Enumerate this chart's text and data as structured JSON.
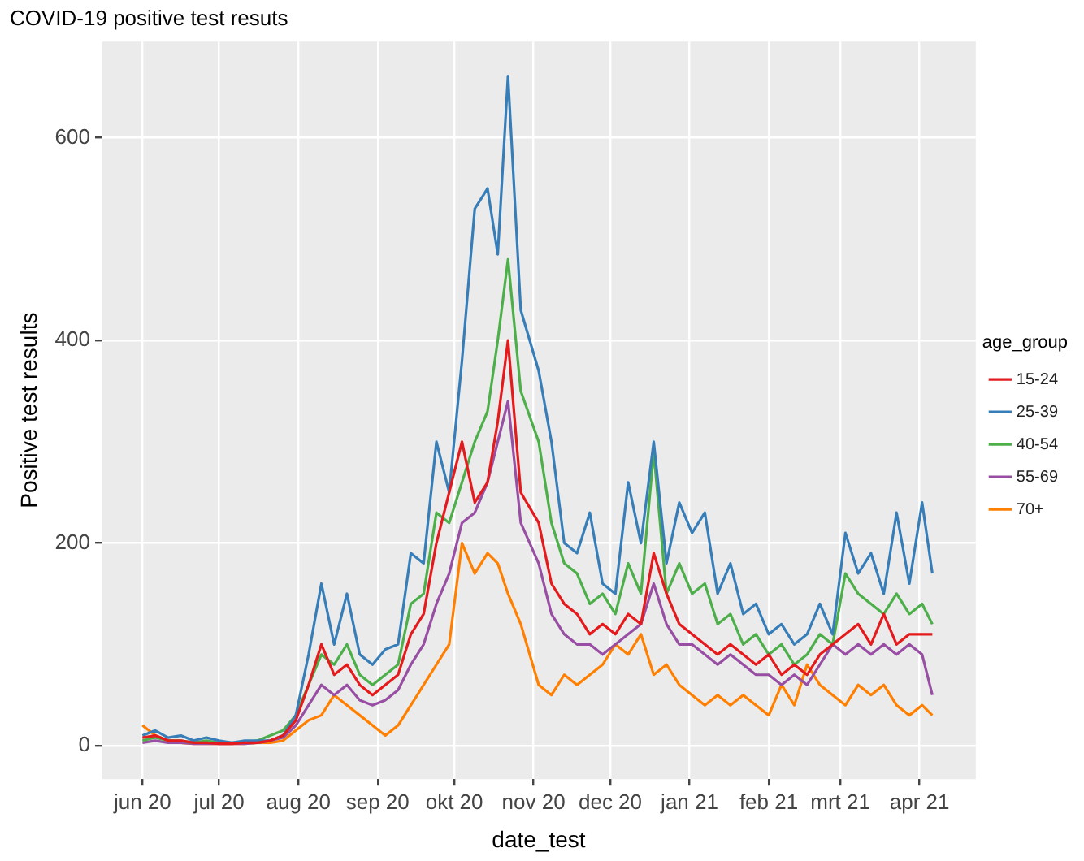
{
  "chart_data": {
    "type": "line",
    "title": "COVID-19 positive test resuts",
    "xlabel": "date_test",
    "ylabel": "Positive test results",
    "legend_title": "age_group",
    "legend": "right",
    "grid": true,
    "marker": "none",
    "line_style": "solid",
    "x": [
      "2020-06-01",
      "2020-06-06",
      "2020-06-11",
      "2020-06-16",
      "2020-06-21",
      "2020-06-26",
      "2020-07-01",
      "2020-07-06",
      "2020-07-11",
      "2020-07-16",
      "2020-07-21",
      "2020-07-26",
      "2020-07-31",
      "2020-08-05",
      "2020-08-10",
      "2020-08-15",
      "2020-08-20",
      "2020-08-25",
      "2020-08-30",
      "2020-09-04",
      "2020-09-09",
      "2020-09-14",
      "2020-09-19",
      "2020-09-24",
      "2020-09-29",
      "2020-10-04",
      "2020-10-09",
      "2020-10-14",
      "2020-10-18",
      "2020-10-22",
      "2020-10-27",
      "2020-11-03",
      "2020-11-08",
      "2020-11-13",
      "2020-11-18",
      "2020-11-23",
      "2020-11-28",
      "2020-12-03",
      "2020-12-08",
      "2020-12-13",
      "2020-12-18",
      "2020-12-23",
      "2020-12-28",
      "2021-01-02",
      "2021-01-07",
      "2021-01-12",
      "2021-01-17",
      "2021-01-22",
      "2021-01-27",
      "2021-02-01",
      "2021-02-06",
      "2021-02-11",
      "2021-02-16",
      "2021-02-21",
      "2021-02-26",
      "2021-03-03",
      "2021-03-08",
      "2021-03-13",
      "2021-03-18",
      "2021-03-23",
      "2021-03-28",
      "2021-04-02",
      "2021-04-06"
    ],
    "xlim": [
      "2020-05-16",
      "2021-04-23"
    ],
    "xticks": [
      {
        "value": "2020-06-01",
        "label": "jun 20"
      },
      {
        "value": "2020-07-01",
        "label": "jul 20"
      },
      {
        "value": "2020-08-01",
        "label": "aug 20"
      },
      {
        "value": "2020-09-01",
        "label": "sep 20"
      },
      {
        "value": "2020-10-01",
        "label": "okt 20"
      },
      {
        "value": "2020-11-01",
        "label": "nov 20"
      },
      {
        "value": "2020-12-01",
        "label": "dec 20"
      },
      {
        "value": "2021-01-01",
        "label": "jan 21"
      },
      {
        "value": "2021-02-01",
        "label": "feb 21"
      },
      {
        "value": "2021-03-01",
        "label": "mrt 21"
      },
      {
        "value": "2021-04-01",
        "label": "apr 21"
      }
    ],
    "ylim": [
      -33,
      695
    ],
    "yticks": [
      0,
      200,
      400,
      600
    ],
    "series": [
      {
        "name": "15-24",
        "color": "#e41a1c",
        "values": [
          8,
          10,
          5,
          5,
          3,
          3,
          2,
          2,
          3,
          3,
          5,
          10,
          25,
          60,
          100,
          70,
          80,
          60,
          50,
          60,
          70,
          110,
          130,
          200,
          250,
          300,
          240,
          260,
          320,
          400,
          250,
          220,
          160,
          140,
          130,
          110,
          120,
          110,
          130,
          120,
          190,
          150,
          120,
          110,
          100,
          90,
          100,
          90,
          80,
          90,
          70,
          80,
          70,
          90,
          100,
          110,
          120,
          100,
          130,
          100,
          110,
          110,
          110
        ]
      },
      {
        "name": "25-39",
        "color": "#377eb8",
        "values": [
          10,
          15,
          8,
          10,
          5,
          8,
          5,
          3,
          5,
          5,
          5,
          10,
          30,
          90,
          160,
          100,
          150,
          90,
          80,
          95,
          100,
          190,
          180,
          300,
          250,
          380,
          530,
          550,
          485,
          661,
          430,
          370,
          300,
          200,
          190,
          230,
          160,
          150,
          260,
          200,
          300,
          180,
          240,
          210,
          230,
          150,
          180,
          130,
          140,
          110,
          120,
          100,
          110,
          140,
          110,
          210,
          170,
          190,
          150,
          230,
          160,
          240,
          170
        ]
      },
      {
        "name": "40-54",
        "color": "#4daf4a",
        "values": [
          5,
          8,
          5,
          5,
          3,
          5,
          3,
          3,
          3,
          5,
          10,
          15,
          30,
          60,
          90,
          80,
          100,
          70,
          60,
          70,
          80,
          140,
          150,
          230,
          220,
          260,
          300,
          330,
          400,
          480,
          350,
          300,
          220,
          180,
          170,
          140,
          150,
          130,
          180,
          150,
          290,
          150,
          180,
          150,
          160,
          120,
          130,
          100,
          110,
          90,
          100,
          80,
          90,
          110,
          100,
          170,
          150,
          140,
          130,
          150,
          130,
          140,
          120
        ]
      },
      {
        "name": "55-69",
        "color": "#984ea3",
        "values": [
          3,
          5,
          3,
          3,
          2,
          2,
          2,
          2,
          2,
          3,
          5,
          8,
          20,
          40,
          60,
          50,
          60,
          45,
          40,
          45,
          55,
          80,
          100,
          140,
          170,
          220,
          230,
          260,
          300,
          340,
          220,
          180,
          130,
          110,
          100,
          100,
          90,
          100,
          110,
          120,
          160,
          120,
          100,
          100,
          90,
          80,
          90,
          80,
          70,
          70,
          60,
          70,
          60,
          80,
          100,
          90,
          100,
          90,
          100,
          90,
          100,
          90,
          50
        ]
      },
      {
        "name": "70+",
        "color": "#ff7f00",
        "values": [
          20,
          10,
          5,
          3,
          2,
          2,
          2,
          2,
          2,
          3,
          3,
          5,
          15,
          25,
          30,
          50,
          40,
          30,
          20,
          10,
          20,
          40,
          60,
          80,
          100,
          200,
          170,
          190,
          180,
          150,
          120,
          60,
          50,
          70,
          60,
          70,
          80,
          100,
          90,
          110,
          70,
          80,
          60,
          50,
          40,
          50,
          40,
          50,
          40,
          30,
          60,
          40,
          80,
          60,
          50,
          40,
          60,
          50,
          60,
          40,
          30,
          40,
          30
        ]
      }
    ]
  }
}
